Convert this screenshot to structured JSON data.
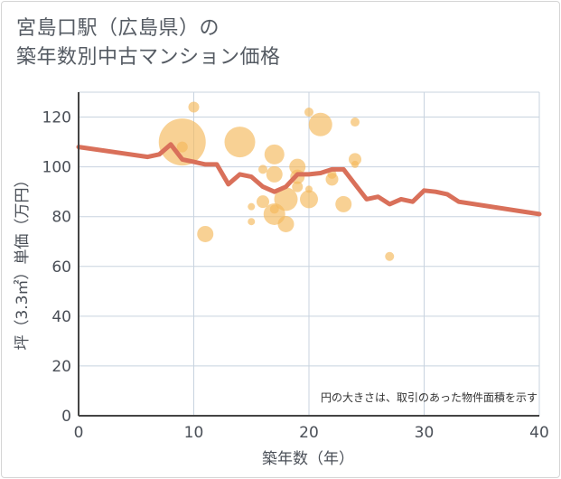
{
  "chart_data": {
    "type": "scatter",
    "title_line1": "宮島口駅（広島県）の",
    "title_line2": "築年数別中古マンション価格",
    "xlabel": "築年数（年）",
    "ylabel": "坪（3.3㎡）単価（万円）",
    "xlim": [
      0,
      40
    ],
    "ylim": [
      0,
      130
    ],
    "xticks": [
      "0",
      "10",
      "20",
      "30",
      "40"
    ],
    "yticks": [
      "0",
      "20",
      "40",
      "60",
      "80",
      "100",
      "120"
    ],
    "xtick_values": [
      0,
      10,
      20,
      30,
      40
    ],
    "ytick_values": [
      0,
      20,
      40,
      60,
      80,
      100,
      120
    ],
    "note": "円の大きさは、取引のあった物件面積を示す",
    "bubbles": [
      {
        "x": 9,
        "y": 110,
        "r": 26
      },
      {
        "x": 9,
        "y": 108,
        "r": 6
      },
      {
        "x": 10,
        "y": 124,
        "r": 6
      },
      {
        "x": 11,
        "y": 73,
        "r": 9
      },
      {
        "x": 14,
        "y": 110,
        "r": 17
      },
      {
        "x": 15,
        "y": 84,
        "r": 4
      },
      {
        "x": 15,
        "y": 78,
        "r": 4
      },
      {
        "x": 16,
        "y": 99,
        "r": 5
      },
      {
        "x": 16,
        "y": 86,
        "r": 7
      },
      {
        "x": 17,
        "y": 105,
        "r": 11
      },
      {
        "x": 17,
        "y": 97,
        "r": 9
      },
      {
        "x": 17,
        "y": 81,
        "r": 12
      },
      {
        "x": 17,
        "y": 83,
        "r": 5
      },
      {
        "x": 18,
        "y": 87,
        "r": 13
      },
      {
        "x": 18,
        "y": 77,
        "r": 9
      },
      {
        "x": 19,
        "y": 100,
        "r": 9
      },
      {
        "x": 19,
        "y": 96,
        "r": 8
      },
      {
        "x": 19,
        "y": 92,
        "r": 6
      },
      {
        "x": 20,
        "y": 122,
        "r": 5
      },
      {
        "x": 20,
        "y": 87,
        "r": 10
      },
      {
        "x": 20,
        "y": 91,
        "r": 4
      },
      {
        "x": 21,
        "y": 117,
        "r": 13
      },
      {
        "x": 22,
        "y": 95,
        "r": 7
      },
      {
        "x": 22,
        "y": 97,
        "r": 5
      },
      {
        "x": 23,
        "y": 85,
        "r": 9
      },
      {
        "x": 24,
        "y": 103,
        "r": 7
      },
      {
        "x": 24,
        "y": 101,
        "r": 4
      },
      {
        "x": 24,
        "y": 118,
        "r": 5
      },
      {
        "x": 27,
        "y": 64,
        "r": 5
      }
    ],
    "trend": {
      "x": [
        0,
        6,
        7,
        8,
        9,
        10,
        11,
        12,
        13,
        14,
        15,
        16,
        17,
        18,
        19,
        20,
        21,
        22,
        23,
        24,
        25,
        26,
        27,
        28,
        29,
        30,
        31,
        32,
        33,
        40
      ],
      "y": [
        108,
        104,
        105,
        109,
        103,
        102,
        101,
        101,
        93,
        97,
        96,
        92,
        90,
        92,
        97,
        97,
        97.5,
        99,
        99,
        93,
        87,
        88,
        85,
        87,
        86,
        90.5,
        90,
        89,
        86,
        81
      ]
    },
    "colors": {
      "bubble": "#f4b85a",
      "trend": "#d9705a",
      "grid": "#c8d3df",
      "axis": "#444444"
    }
  }
}
